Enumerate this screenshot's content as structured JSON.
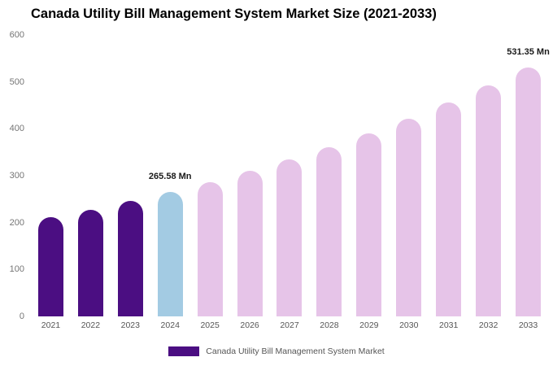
{
  "title": "Canada Utility Bill Management System Market Size (2021-2033)",
  "legend": {
    "label": "Canada Utility Bill Management System Market",
    "color": "#4B0E82",
    "position": "bottom"
  },
  "colors": {
    "historical_bar": "#4B0E82",
    "current_year_bar": "#A3CBE3",
    "forecast_bar": "#E6C4E8",
    "axis_text": "#757575",
    "category_text": "#555555",
    "annotation_text": "#1a1a1a"
  },
  "chart_data": {
    "type": "bar",
    "title": "Canada Utility Bill Management System Market Size (2021-2033)",
    "unit": "Mn",
    "categories": [
      "2021",
      "2022",
      "2023",
      "2024",
      "2025",
      "2026",
      "2027",
      "2028",
      "2029",
      "2030",
      "2031",
      "2032",
      "2033"
    ],
    "values": [
      210.9,
      227.8,
      246.0,
      265.58,
      286.8,
      309.8,
      334.6,
      361.4,
      390.3,
      421.6,
      455.3,
      491.8,
      531.35
    ],
    "bar_colors": [
      "#4B0E82",
      "#4B0E82",
      "#4B0E82",
      "#A3CBE3",
      "#E6C4E8",
      "#E6C4E8",
      "#E6C4E8",
      "#E6C4E8",
      "#E6C4E8",
      "#E6C4E8",
      "#E6C4E8",
      "#E6C4E8",
      "#E6C4E8"
    ],
    "annotations": [
      {
        "index": 3,
        "category": "2024",
        "text": "265.58 Mn"
      },
      {
        "index": 12,
        "category": "2033",
        "text": "531.35 Mn"
      }
    ],
    "xlabel": "",
    "ylabel": "",
    "ylim": [
      0,
      600
    ],
    "yticks": [
      0,
      100,
      200,
      300,
      400,
      500,
      600
    ],
    "grid": false,
    "legend_position": "bottom"
  }
}
